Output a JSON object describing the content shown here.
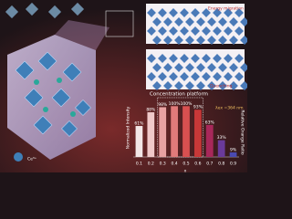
{
  "chart_data": {
    "type": "bar",
    "x_label": "x",
    "y_label": "Normalized Intensity",
    "y2_label": "Relative Orange Ratio",
    "categories": [
      "0.1",
      "0.2",
      "0.3",
      "0.4",
      "0.5",
      "0.6",
      "0.7",
      "0.8",
      "0.9"
    ],
    "values": [
      61,
      88,
      98,
      100,
      100,
      93,
      63,
      33,
      9
    ],
    "value_labels": [
      "61%",
      "88%",
      "98%",
      "100%",
      "100%",
      "93%",
      "63%",
      "33%",
      "9%"
    ],
    "colors": [
      "#f3e6e6",
      "#f0c9c9",
      "#e8a2a2",
      "#e07a7a",
      "#d85050",
      "#c83838",
      "#a8285a",
      "#6a3a9a",
      "#4a4ab0"
    ],
    "ylim": [
      0,
      115
    ],
    "annotations": [
      "Concentration platform",
      "λex =364 nm",
      "Energy migration",
      "Quenching",
      "Ce³⁺"
    ]
  }
}
